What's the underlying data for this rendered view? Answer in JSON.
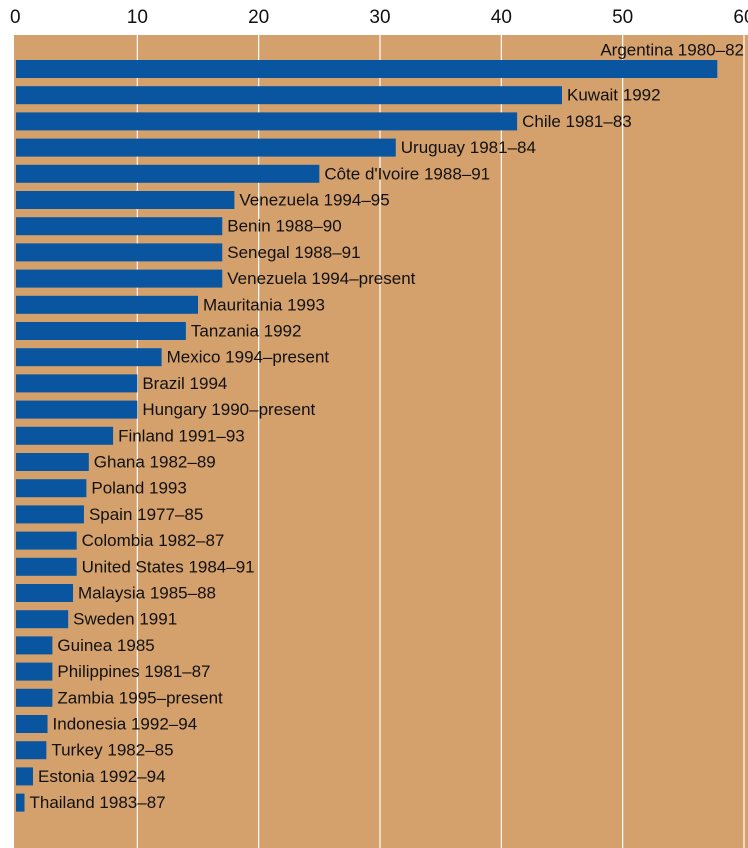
{
  "chart_data": {
    "type": "hbar",
    "categories": [
      "Argentina 1980–82",
      "Kuwait 1992",
      "Chile 1981–83",
      "Uruguay 1981–84",
      "Côte d'Ivoire 1988–91",
      "Venezuela 1994–95",
      "Benin 1988–90",
      "Senegal 1988–91",
      "Venezuela 1994–present",
      "Mauritania 1993",
      "Tanzania 1992",
      "Mexico 1994–present",
      "Brazil 1994",
      "Hungary 1990–present",
      "Finland 1991–93",
      "Ghana 1982–89",
      "Poland 1993",
      "Spain 1977–85",
      "Colombia 1982–87",
      "United States 1984–91",
      "Malaysia 1985–88",
      "Sweden 1991",
      "Guinea 1985",
      "Philippines 1981–87",
      "Zambia 1995–present",
      "Indonesia 1992–94",
      "Turkey 1982–85",
      "Estonia 1992–94",
      "Thailand 1983–87"
    ],
    "values": [
      57.8,
      45,
      41.3,
      31.3,
      25,
      18,
      17,
      17,
      17,
      15,
      14,
      12,
      10,
      10,
      8,
      6,
      5.8,
      5.6,
      5,
      5,
      4.7,
      4.3,
      3,
      3,
      3,
      2.6,
      2.5,
      1.4,
      0.7
    ],
    "color": "#0a559f",
    "xlim": [
      0,
      60
    ],
    "xticks": [
      0,
      10,
      20,
      30,
      40,
      50,
      60
    ],
    "grid": true
  }
}
